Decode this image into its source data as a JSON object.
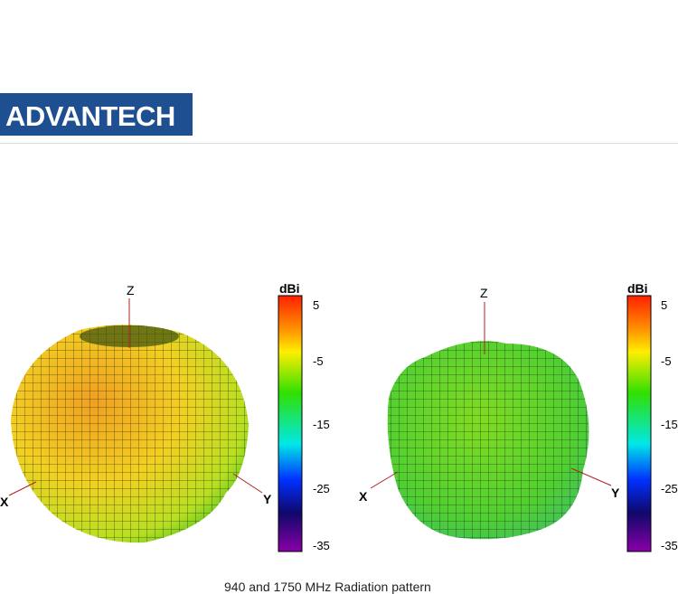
{
  "header": {
    "logo_text": "ADVANTECH",
    "brand_color": "#1d4f91"
  },
  "figures": [
    {
      "colorbar": {
        "unit": "dBi",
        "ticks": [
          "5",
          "-5",
          "-15",
          "-25",
          "-35"
        ]
      },
      "axes": {
        "x": "X",
        "y": "Y",
        "z": "Z"
      },
      "dominant_color": "#e8b020"
    },
    {
      "colorbar": {
        "unit": "dBi",
        "ticks": [
          "5",
          "-5",
          "-15",
          "-25",
          "-35"
        ]
      },
      "axes": {
        "x": "X",
        "y": "Y",
        "z": "Z"
      },
      "dominant_color": "#5ed42a"
    }
  ],
  "caption": "940 and 1750 MHz Radiation pattern"
}
